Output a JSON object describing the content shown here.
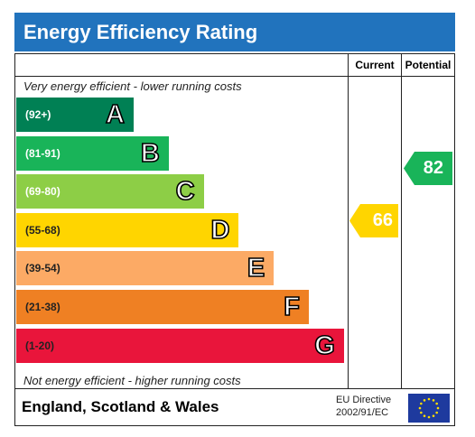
{
  "title": "Energy Efficiency Rating",
  "columns": {
    "current": "Current",
    "potential": "Potential"
  },
  "top_caption": "Very energy efficient - lower running costs",
  "bottom_caption": "Not energy efficient - higher running costs",
  "bands": [
    {
      "range": "(92+)",
      "letter": "A",
      "color": "#008054"
    },
    {
      "range": "(81-91)",
      "letter": "B",
      "color": "#19b459"
    },
    {
      "range": "(69-80)",
      "letter": "C",
      "color": "#8dce46"
    },
    {
      "range": "(55-68)",
      "letter": "D",
      "color": "#ffd500"
    },
    {
      "range": "(39-54)",
      "letter": "E",
      "color": "#fcaa65"
    },
    {
      "range": "(21-38)",
      "letter": "F",
      "color": "#ef8023"
    },
    {
      "range": "(1-20)",
      "letter": "G",
      "color": "#e9153b"
    }
  ],
  "current": {
    "value": "66",
    "band": "D",
    "color": "#ffd500"
  },
  "potential": {
    "value": "82",
    "band": "B",
    "color": "#19b459"
  },
  "footer": {
    "region": "England, Scotland & Wales",
    "directive_line1": "EU Directive",
    "directive_line2": "2002/91/EC"
  },
  "icons": {
    "eu_flag": "eu-flag-icon"
  }
}
